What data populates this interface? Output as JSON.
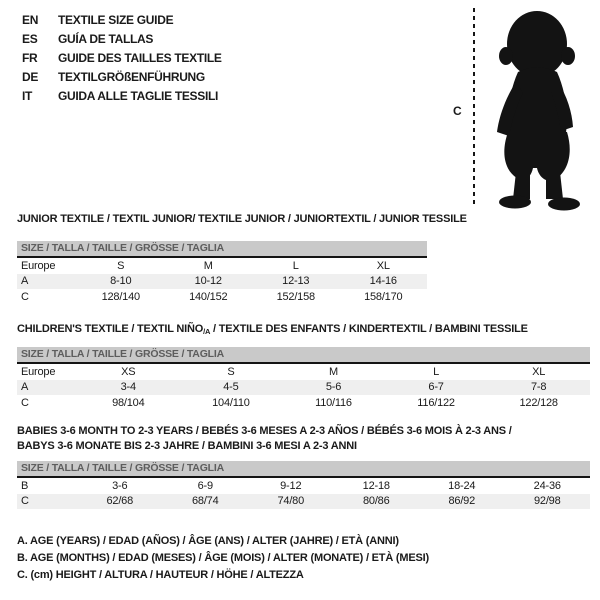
{
  "languages": [
    {
      "code": "EN",
      "title": "TEXTILE SIZE GUIDE"
    },
    {
      "code": "ES",
      "title": "GUÍA DE TALLAS"
    },
    {
      "code": "FR",
      "title": "GUIDE DES TAILLES TEXTILE"
    },
    {
      "code": "DE",
      "title": "TEXTILGRÖßENFÜHRUNG"
    },
    {
      "code": "IT",
      "title": "GUIDA ALLE TAGLIE TESSILI"
    }
  ],
  "figure": {
    "height_label": "C",
    "icon": "baby-silhouette-icon"
  },
  "tables": [
    {
      "title": "JUNIOR TEXTILE / TEXTIL JUNIOR/ TEXTILE JUNIOR / JUNIORTEXTIL / JUNIOR TESSILE",
      "size_header": "SIZE / TALLA / TAILLE / GRÖSSE / TAGLIA",
      "rows": [
        [
          "Europe",
          "S",
          "M",
          "L",
          "XL"
        ],
        [
          "A",
          "8-10",
          "10-12",
          "12-13",
          "14-16"
        ],
        [
          "C",
          "128/140",
          "140/152",
          "152/158",
          "158/170"
        ]
      ]
    },
    {
      "title_prefix": "CHILDREN'S TEXTILE / TEXTIL NIÑO",
      "title_sub": "/A",
      "title_suffix": " / TEXTILE DES ENFANTS / KINDERTEXTIL / BAMBINI TESSILE",
      "size_header": "SIZE / TALLA / TAILLE / GRÖSSE / TAGLIA",
      "rows": [
        [
          "Europe",
          "XS",
          "S",
          "M",
          "L",
          "XL"
        ],
        [
          "A",
          "3-4",
          "4-5",
          "5-6",
          "6-7",
          "7-8"
        ],
        [
          "C",
          "98/104",
          "104/110",
          "110/116",
          "116/122",
          "122/128"
        ]
      ]
    },
    {
      "title_line1": "BABIES 3-6 MONTH TO 2-3 YEARS / BEBÉS 3-6 MESES A 2-3 AÑOS / BÉBÉS 3-6 MOIS À 2-3 ANS /",
      "title_line2": "BABYS 3-6 MONATE BIS 2-3 JAHRE / BAMBINI 3-6 MESI A 2-3 ANNI",
      "size_header": "SIZE / TALLA / TAILLE / GRÖSSE / TAGLIA",
      "rows": [
        [
          "B",
          "3-6",
          "6-9",
          "9-12",
          "12-18",
          "18-24",
          "24-36"
        ],
        [
          "C",
          "62/68",
          "68/74",
          "74/80",
          "80/86",
          "86/92",
          "92/98"
        ]
      ]
    }
  ],
  "footnotes": [
    "A. AGE (YEARS) / EDAD (AÑOS) / ÂGE (ANS) / ALTER (JAHRE) / ETÀ (ANNI)",
    "B. AGE (MONTHS) / EDAD (MESES) / ÂGE (MOIS) / ALTER (MONATE) / ETÀ (MESI)",
    "C. (cm) HEIGHT / ALTURA / HAUTEUR / HÖHE / ALTEZZA"
  ],
  "colors": {
    "bar_bg": "#c9c9c9",
    "bar_text": "#5d5d5d",
    "stripe": "#efefef",
    "ink": "#1a1a1a"
  }
}
